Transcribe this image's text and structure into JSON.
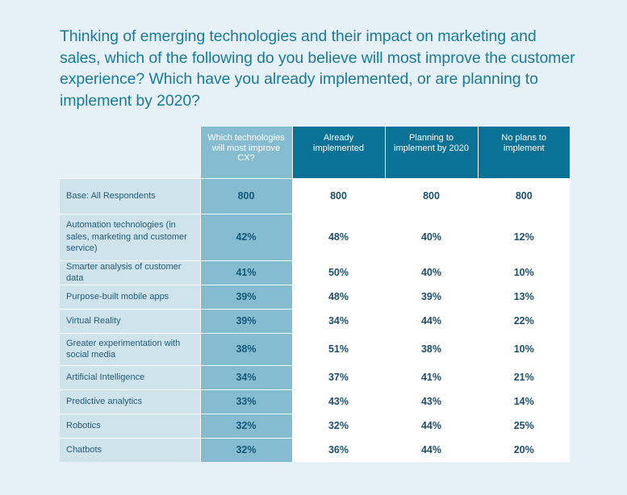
{
  "title": "Thinking of emerging technologies and their impact on marketing and sales, which of the following do you believe will most improve the customer experience? Which have you already implemented, or are planning to implement by 2020?",
  "colors": {
    "background": "#e6f1f7",
    "title": "#1a7a9e",
    "header_dark": "#0b7297",
    "cx_column": "#86bcd0",
    "label_column": "#cfe3ec",
    "value_cells": "#ffffff"
  },
  "chart_data": {
    "type": "table",
    "title": "Thinking of emerging technologies and their impact on marketing and sales, which of the following do you believe will most improve the customer experience? Which have you already implemented, or are planning to implement by 2020?",
    "columns": [
      "Which technologies will most improve CX?",
      "Already implemented",
      "Planning to implement by 2020",
      "No plans to implement"
    ],
    "rows": [
      {
        "label": "Base: All Respondents",
        "values": [
          "800",
          "800",
          "800",
          "800"
        ]
      },
      {
        "label": "Automation technologies (in sales, marketing and customer service)",
        "values": [
          "42%",
          "48%",
          "40%",
          "12%"
        ]
      },
      {
        "label": "Smarter analysis of customer data",
        "values": [
          "41%",
          "50%",
          "40%",
          "10%"
        ]
      },
      {
        "label": "Purpose-built mobile apps",
        "values": [
          "39%",
          "48%",
          "39%",
          "13%"
        ]
      },
      {
        "label": "Virtual Reality",
        "values": [
          "39%",
          "34%",
          "44%",
          "22%"
        ]
      },
      {
        "label": "Greater experimentation with social media",
        "values": [
          "38%",
          "51%",
          "38%",
          "10%"
        ]
      },
      {
        "label": "Artificial Intelligence",
        "values": [
          "34%",
          "37%",
          "41%",
          "21%"
        ]
      },
      {
        "label": "Predictive analytics",
        "values": [
          "33%",
          "43%",
          "43%",
          "14%"
        ]
      },
      {
        "label": "Robotics",
        "values": [
          "32%",
          "32%",
          "44%",
          "25%"
        ]
      },
      {
        "label": "Chatbots",
        "values": [
          "32%",
          "36%",
          "44%",
          "20%"
        ]
      }
    ]
  }
}
